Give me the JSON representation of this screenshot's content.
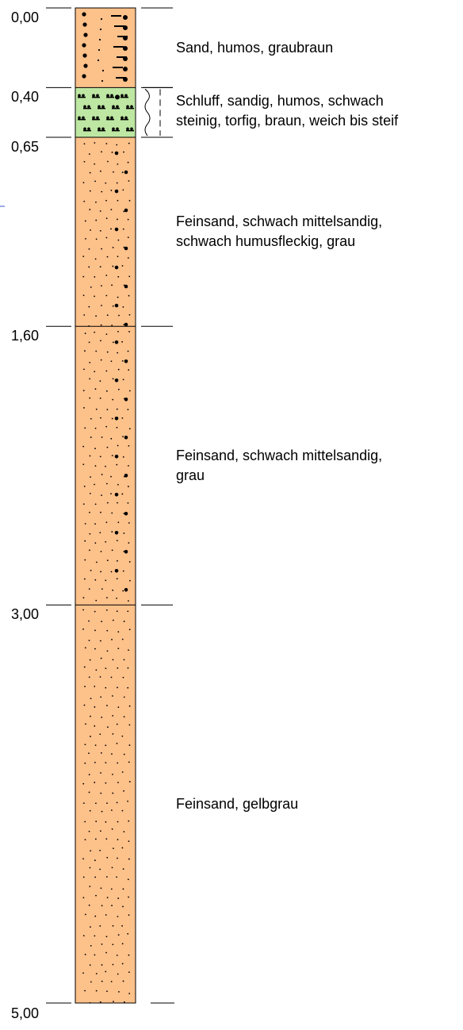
{
  "profile": {
    "depth_range": [
      0.0,
      5.0
    ],
    "layers": [
      {
        "top": 0.0,
        "bottom": 0.4,
        "top_label": "0,00",
        "description": [
          "Sand, humos, graubraun"
        ],
        "fill": "#fdc18a",
        "pattern": "sand-humos",
        "consistency_symbol": false
      },
      {
        "top": 0.4,
        "bottom": 0.65,
        "top_label": "0,40",
        "description": [
          "Schluff, sandig, humos, schwach",
          "steinig, torfig, braun, weich bis steif"
        ],
        "fill": "#bde7a2",
        "pattern": "schluff-torf",
        "consistency_symbol": true
      },
      {
        "top": 0.65,
        "bottom": 1.6,
        "top_label": "0,65",
        "description": [
          "Feinsand, schwach mittelsandig,",
          "schwach humusfleckig, grau"
        ],
        "fill": "#fdc18a",
        "pattern": "feinsand-mittelsand",
        "consistency_symbol": false
      },
      {
        "top": 1.6,
        "bottom": 3.0,
        "top_label": "1,60",
        "description": [
          "Feinsand, schwach mittelsandig,",
          "grau"
        ],
        "fill": "#fdc18a",
        "pattern": "feinsand-mittelsand",
        "consistency_symbol": false
      },
      {
        "top": 3.0,
        "bottom": 5.0,
        "top_label": "3,00",
        "description": [
          "Feinsand, gelbgrau"
        ],
        "fill": "#fdc18a",
        "pattern": "feinsand",
        "consistency_symbol": false
      }
    ],
    "end_label": "5,00",
    "colors": {
      "sand": "#fdc18a",
      "schluff": "#bde7a2",
      "line": "#000000",
      "link_mark": "#3355cc"
    }
  }
}
